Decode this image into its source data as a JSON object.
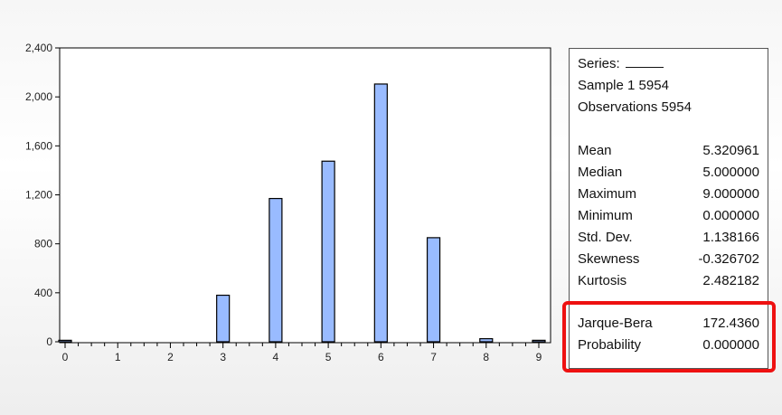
{
  "chart_data": {
    "type": "bar",
    "categories": [
      "0",
      "1",
      "2",
      "3",
      "4",
      "5",
      "6",
      "7",
      "8",
      "9"
    ],
    "values": [
      12,
      0,
      0,
      380,
      1170,
      1475,
      2105,
      850,
      25,
      12
    ],
    "title": "",
    "xlabel": "",
    "ylabel": "",
    "ylim": [
      0,
      2400
    ],
    "xlim": [
      0,
      9
    ],
    "yticks": [
      0,
      400,
      800,
      1200,
      1600,
      2000,
      2400
    ],
    "yticklabels": [
      "0",
      "400",
      "800",
      "1,200",
      "1,600",
      "2,000",
      "2,400"
    ],
    "xticks": [
      0,
      1,
      2,
      3,
      4,
      5,
      6,
      7,
      8,
      9
    ],
    "grid": false,
    "bar_color": "#99bbff",
    "bar_edge_color": "#000000"
  },
  "stats": {
    "series_label": "Series:",
    "sample": "Sample 1 5954",
    "observations": "Observations 5954",
    "rows": [
      {
        "label": "Mean",
        "value": "5.320961"
      },
      {
        "label": "Median",
        "value": "5.000000"
      },
      {
        "label": "Maximum",
        "value": "9.000000"
      },
      {
        "label": "Minimum",
        "value": "0.000000"
      },
      {
        "label": "Std. Dev.",
        "value": "1.138166"
      },
      {
        "label": "Skewness",
        "value": "-0.326702"
      },
      {
        "label": "Kurtosis",
        "value": "2.482182"
      }
    ],
    "test_rows": [
      {
        "label": "Jarque-Bera",
        "value": "172.4360"
      },
      {
        "label": "Probability",
        "value": "0.000000"
      }
    ]
  },
  "highlight_color": "#ee1111"
}
